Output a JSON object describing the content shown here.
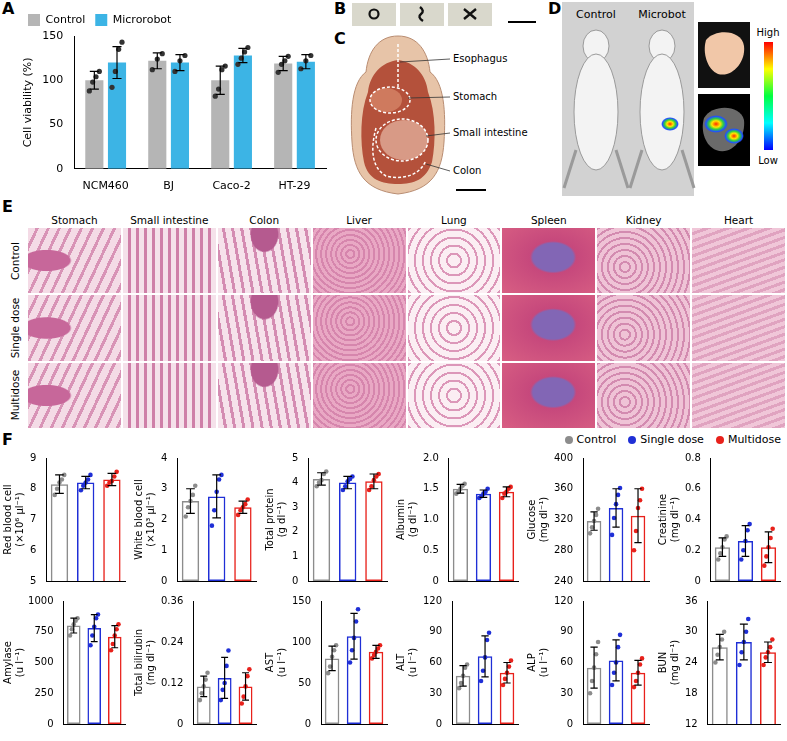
{
  "chart_data": [
    {
      "panel": "A",
      "type": "bar",
      "y_label": "Cell viability (%)",
      "categories": [
        "NCM460",
        "BJ",
        "Caco-2",
        "HT-29"
      ],
      "series": [
        {
          "name": "Control",
          "color": "#b5b5b5",
          "values": [
            100,
            122,
            100,
            119
          ],
          "errors": [
            10,
            9,
            16,
            8
          ],
          "points": [
            [
              88,
              98,
              104,
              110
            ],
            [
              112,
              124,
              130
            ],
            [
              82,
              90,
              112,
              116
            ],
            [
              109,
              118,
              122,
              127
            ]
          ]
        },
        {
          "name": "Microrobot",
          "color": "#3cb4e5",
          "values": [
            120,
            120,
            128,
            121
          ],
          "errors": [
            18,
            9,
            8,
            8
          ],
          "points": [
            [
              92,
              110,
              135,
              143
            ],
            [
              110,
              122,
              128
            ],
            [
              118,
              125,
              132,
              137
            ],
            [
              113,
              122,
              128
            ]
          ]
        }
      ],
      "ylim": [
        0,
        150
      ],
      "yticks": [
        0,
        50,
        100,
        150
      ],
      "grid": false,
      "legend": "top-left"
    },
    {
      "panel": "F",
      "type": "bar",
      "grid": false,
      "legend": "top-right",
      "tick_labels": "y",
      "series": [
        {
          "name": "Control",
          "color": "#8c8c8c"
        },
        {
          "name": "Single dose",
          "color": "#1f2fd6"
        },
        {
          "name": "Multidose",
          "color": "#e8211b"
        }
      ],
      "subplots": [
        {
          "y_label": "Red blood cell (×10⁶ μl⁻¹)",
          "ylim": [
            5,
            9
          ],
          "yticks": [
            5,
            6,
            7,
            8,
            9
          ],
          "values": [
            8.15,
            8.2,
            8.3
          ],
          "errors": [
            0.3,
            0.2,
            0.2
          ],
          "points": [
            [
              7.8,
              8.0,
              8.2,
              8.3,
              8.45
            ],
            [
              7.95,
              8.1,
              8.2,
              8.3,
              8.45
            ],
            [
              8.1,
              8.2,
              8.25,
              8.4,
              8.55
            ]
          ]
        },
        {
          "y_label": "White blood cell (×10³ μl⁻¹)",
          "ylim": [
            0,
            4
          ],
          "yticks": [
            0,
            1,
            2,
            3,
            4
          ],
          "values": [
            2.6,
            2.75,
            2.4
          ],
          "errors": [
            0.4,
            0.7,
            0.2
          ],
          "points": [
            [
              2.1,
              2.4,
              2.6,
              2.8,
              3.1
            ],
            [
              1.8,
              2.3,
              2.9,
              3.3,
              3.45
            ],
            [
              2.15,
              2.3,
              2.4,
              2.5,
              2.65
            ]
          ]
        },
        {
          "y_label": "Total protein (g dl⁻¹)",
          "ylim": [
            0,
            5
          ],
          "yticks": [
            0,
            1,
            2,
            3,
            4,
            5
          ],
          "values": [
            4.15,
            4.0,
            4.05
          ],
          "errors": [
            0.25,
            0.25,
            0.3
          ],
          "points": [
            [
              3.85,
              4.0,
              4.1,
              4.35,
              4.45
            ],
            [
              3.7,
              3.85,
              4.05,
              4.15,
              4.25
            ],
            [
              3.7,
              3.85,
              4.1,
              4.25,
              4.35
            ]
          ]
        },
        {
          "y_label": "Albumin (g dl⁻¹)",
          "ylim": [
            0,
            2
          ],
          "yticks": [
            0,
            0.5,
            {
              "value": 1,
              "label": "1.0"
            },
            1.5,
            {
              "value": 2,
              "label": "2.0"
            }
          ],
          "values": [
            1.5,
            1.42,
            1.45
          ],
          "errors": [
            0.07,
            0.06,
            0.08
          ],
          "points": [
            [
              1.42,
              1.45,
              1.5,
              1.55,
              1.58
            ],
            [
              1.35,
              1.38,
              1.42,
              1.45,
              1.5
            ],
            [
              1.35,
              1.42,
              1.45,
              1.5,
              1.53
            ]
          ]
        },
        {
          "y_label": "Glucose (mg dl⁻¹)",
          "ylim": [
            240,
            400
          ],
          "yticks": [
            240,
            280,
            320,
            360,
            400
          ],
          "values": [
            318,
            335,
            325
          ],
          "errors": [
            12,
            25,
            35
          ],
          "points": [
            [
              302,
              310,
              318,
              326,
              334
            ],
            [
              300,
              322,
              340,
              352,
              361
            ],
            [
              280,
              305,
              335,
              345,
              360
            ]
          ]
        },
        {
          "y_label": "Creatinine (mg dl⁻¹)",
          "ylim": [
            0,
            0.8
          ],
          "yticks": [
            0,
            0.2,
            0.4,
            0.6,
            0.8
          ],
          "values": [
            0.22,
            0.26,
            0.22
          ],
          "errors": [
            0.06,
            0.1,
            0.1
          ],
          "points": [
            [
              0.14,
              0.18,
              0.22,
              0.27,
              0.29
            ],
            [
              0.14,
              0.2,
              0.26,
              0.33,
              0.37
            ],
            [
              0.1,
              0.16,
              0.22,
              0.28,
              0.34
            ]
          ]
        },
        {
          "y_label": "Amylase (u l⁻¹)",
          "ylim": [
            0,
            1000
          ],
          "yticks": [
            0,
            250,
            500,
            750,
            1000
          ],
          "values": [
            800,
            780,
            710
          ],
          "errors": [
            60,
            110,
            90
          ],
          "points": [
            [
              720,
              770,
              810,
              840,
              860
            ],
            [
              640,
              720,
              790,
              860,
              890
            ],
            [
              600,
              650,
              720,
              770,
              810
            ]
          ]
        },
        {
          "y_label": "Total bilirubin (mg dl⁻¹)",
          "ylim": [
            0,
            0.36
          ],
          "yticks": [
            0,
            0.12,
            0.24,
            0.36
          ],
          "values": [
            0.11,
            0.135,
            0.11
          ],
          "errors": [
            0.03,
            0.06,
            0.04
          ],
          "points": [
            [
              0.07,
              0.09,
              0.11,
              0.13,
              0.15
            ],
            [
              0.07,
              0.1,
              0.12,
              0.17,
              0.215
            ],
            [
              0.06,
              0.08,
              0.11,
              0.14,
              0.16
            ]
          ]
        },
        {
          "y_label": "AST (u l⁻¹)",
          "ylim": [
            0,
            150
          ],
          "yticks": [
            0,
            50,
            100,
            150
          ],
          "values": [
            80,
            107,
            88
          ],
          "errors": [
            15,
            28,
            8
          ],
          "points": [
            [
              62,
              70,
              82,
              90,
              96
            ],
            [
              75,
              90,
              105,
              125,
              140
            ],
            [
              80,
              84,
              88,
              92,
              96
            ]
          ]
        },
        {
          "y_label": "ALT (u l⁻¹)",
          "ylim": [
            0,
            120
          ],
          "yticks": [
            0,
            30,
            60,
            90,
            120
          ],
          "values": [
            47,
            66,
            50
          ],
          "errors": [
            10,
            20,
            10
          ],
          "points": [
            [
              35,
              40,
              47,
              55,
              58
            ],
            [
              42,
              52,
              65,
              82,
              89
            ],
            [
              38,
              44,
              50,
              56,
              62
            ]
          ]
        },
        {
          "y_label": "ALP (u l⁻¹)",
          "ylim": [
            0,
            120
          ],
          "yticks": [
            0,
            30,
            60,
            90,
            120
          ],
          "values": [
            55,
            62,
            50
          ],
          "errors": [
            20,
            20,
            12
          ],
          "points": [
            [
              30,
              42,
              55,
              68,
              80
            ],
            [
              38,
              50,
              60,
              75,
              87
            ],
            [
              36,
              42,
              50,
              58,
              64
            ]
          ]
        },
        {
          "y_label": "BUN (mg dl⁻¹)",
          "ylim": [
            12,
            36
          ],
          "yticks": [
            12,
            18,
            24,
            30,
            36
          ],
          "values": [
            27,
            28,
            26
          ],
          "errors": [
            2.5,
            3.5,
            2
          ],
          "points": [
            [
              24,
              25.5,
              27,
              28.5,
              30
            ],
            [
              23.5,
              26,
              28,
              30,
              32.5
            ],
            [
              23.5,
              25,
              26,
              27,
              28.5
            ]
          ]
        }
      ]
    }
  ],
  "figure": {
    "B": {
      "panel": "B"
    },
    "C": {
      "panel": "C",
      "labels": [
        "Esophagus",
        "Stomach",
        "Small intestine",
        "Colon"
      ]
    },
    "D": {
      "panel": "D",
      "labels": [
        "Control",
        "Microbot"
      ],
      "color_scale": {
        "high": "High",
        "low": "Low"
      }
    },
    "E": {
      "panel": "E",
      "columns": [
        "Stomach",
        "Small intestine",
        "Colon",
        "Liver",
        "Lung",
        "Spleen",
        "Kidney",
        "Heart"
      ],
      "rows": [
        "Control",
        "Single dose",
        "Multidose"
      ]
    }
  }
}
